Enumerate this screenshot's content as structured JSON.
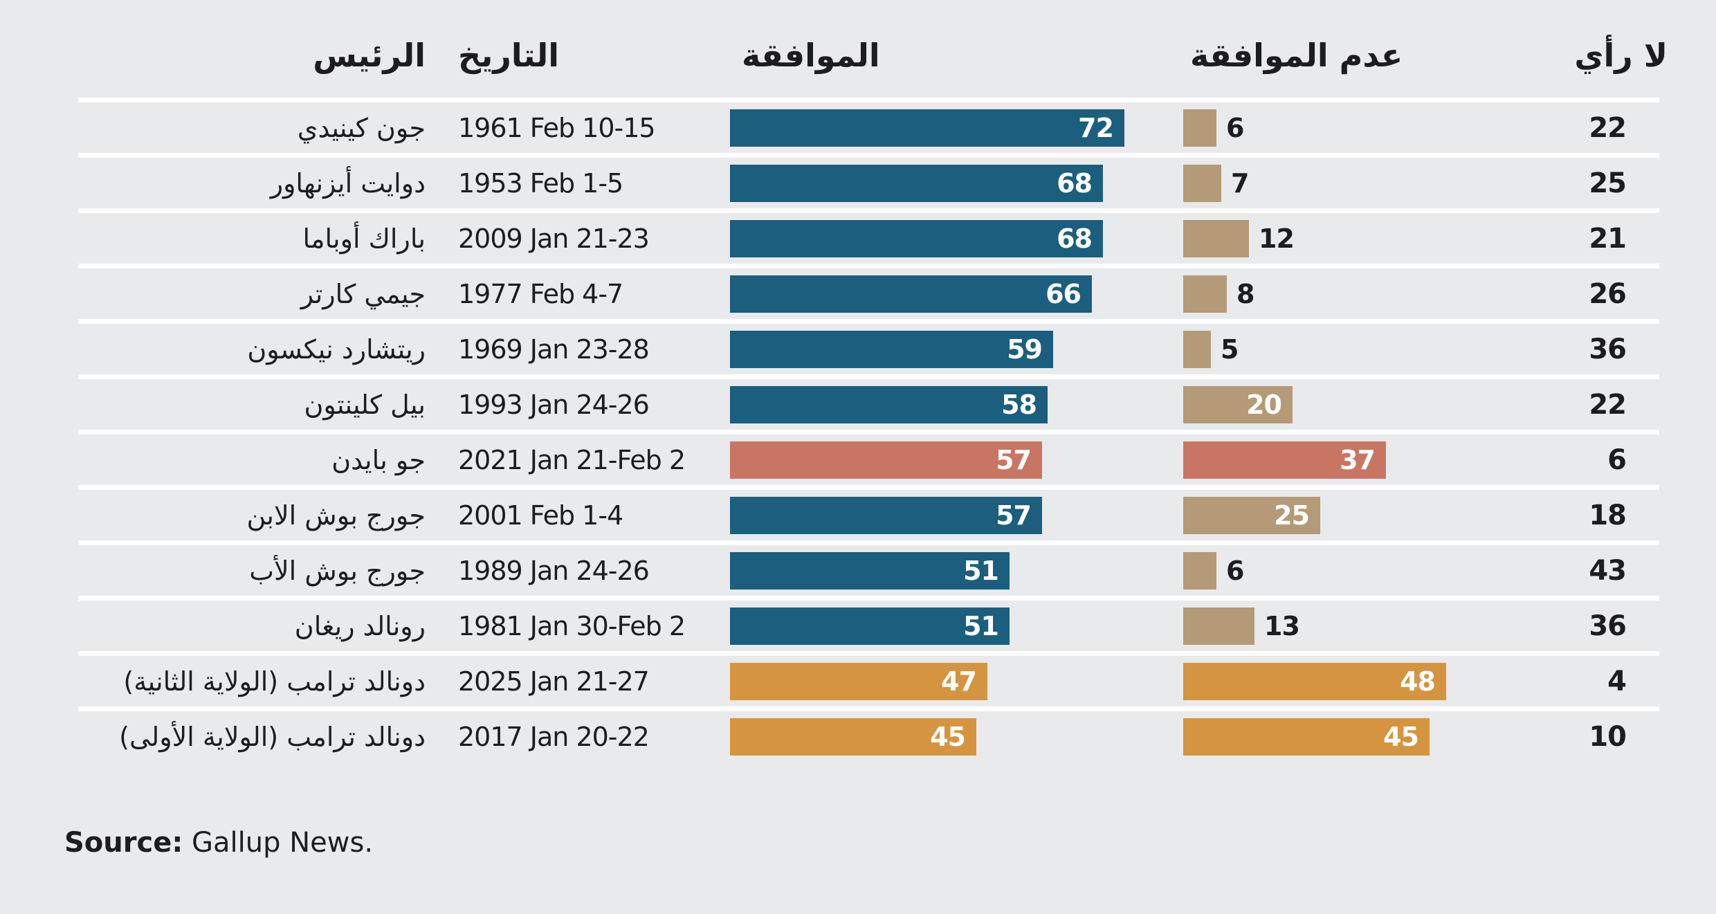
{
  "header": {
    "president": "الرئيس",
    "date": "التاريخ",
    "approve": "الموافقة",
    "disapprove": "عدم الموافقة",
    "no_opinion": "لا رأي"
  },
  "source": {
    "label": "Source:",
    "text": " Gallup News."
  },
  "colors": {
    "background": "#e9eaec",
    "separator": "#ffffff",
    "text": "#1d1d1f",
    "bar_label": "#ffffff",
    "palette": {
      "default": {
        "approve": "#1b5e7e",
        "disapprove": "#b49a76"
      },
      "biden": {
        "approve": "#c87663",
        "disapprove": "#c87663"
      },
      "trump": {
        "approve": "#d5943f",
        "disapprove": "#d5943f"
      }
    }
  },
  "chart_data": {
    "type": "bar",
    "orientation": "horizontal",
    "title": "",
    "xlabel": "",
    "ylabel": "",
    "xlim": [
      0,
      100
    ],
    "grid": false,
    "legend_position": "column-headers",
    "value_labels": "shown",
    "categories": [
      "جون كينيدي",
      "دوايت أيزنهاور",
      "باراك أوباما",
      "جيمي كارتر",
      "ريتشارد نيكسون",
      "بيل كلينتون",
      "جو بايدن",
      "جورج بوش الابن",
      "جورج بوش الأب",
      "رونالد ريغان",
      "دونالد ترامب (الولاية الثانية)",
      "دونالد ترامب (الولاية الأولى)"
    ],
    "dates": [
      "1961 Feb 10-15",
      "1953 Feb 1-5",
      "2009 Jan 21-23",
      "1977 Feb 4-7",
      "1969 Jan 23-28",
      "1993 Jan 24-26",
      "2021 Jan 21-Feb 2",
      "2001 Feb 1-4",
      "1989 Jan 24-26",
      "1981 Jan 30-Feb 2",
      "2025 Jan 21-27",
      "2017 Jan 20-22"
    ],
    "series": [
      {
        "name": "الموافقة",
        "values": [
          72,
          68,
          68,
          66,
          59,
          58,
          57,
          57,
          51,
          51,
          47,
          45
        ]
      },
      {
        "name": "عدم الموافقة",
        "values": [
          6,
          7,
          12,
          8,
          5,
          20,
          37,
          25,
          6,
          13,
          48,
          45
        ]
      },
      {
        "name": "لا رأي",
        "values": [
          22,
          25,
          21,
          26,
          36,
          22,
          6,
          18,
          43,
          36,
          4,
          10
        ]
      }
    ],
    "row_colors": [
      "default",
      "default",
      "default",
      "default",
      "default",
      "default",
      "biden",
      "default",
      "default",
      "default",
      "trump",
      "trump"
    ],
    "source": "Gallup News."
  }
}
